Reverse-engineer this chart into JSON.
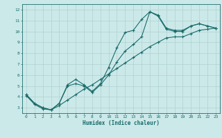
{
  "xlabel": "Humidex (Indice chaleur)",
  "background_color": "#cce9e9",
  "grid_color": "#b0d0d0",
  "line_color": "#1a6b6b",
  "x_values": [
    0,
    1,
    2,
    3,
    4,
    5,
    6,
    7,
    8,
    9,
    10,
    11,
    12,
    13,
    14,
    15,
    16,
    17,
    18,
    19,
    20,
    21,
    22,
    23
  ],
  "line1": [
    4.2,
    3.4,
    3.0,
    2.8,
    3.4,
    5.1,
    5.6,
    5.1,
    4.5,
    5.2,
    6.7,
    8.5,
    9.9,
    10.1,
    11.1,
    11.8,
    11.5,
    10.3,
    10.1,
    10.1,
    10.5,
    10.7,
    10.5,
    10.3
  ],
  "line2": [
    4.2,
    3.4,
    3.0,
    2.8,
    3.4,
    5.0,
    5.2,
    5.0,
    4.4,
    5.1,
    6.0,
    7.2,
    8.2,
    8.8,
    9.5,
    11.8,
    11.4,
    10.2,
    10.0,
    10.0,
    10.5,
    10.7,
    10.5,
    10.3
  ],
  "line3": [
    4.1,
    3.3,
    2.9,
    2.8,
    3.2,
    3.7,
    4.2,
    4.7,
    5.1,
    5.6,
    6.1,
    6.6,
    7.1,
    7.6,
    8.1,
    8.6,
    9.0,
    9.4,
    9.5,
    9.5,
    9.8,
    10.1,
    10.2,
    10.3
  ],
  "ylim": [
    2.5,
    12.5
  ],
  "xlim": [
    -0.5,
    23.5
  ],
  "yticks": [
    3,
    4,
    5,
    6,
    7,
    8,
    9,
    10,
    11,
    12
  ],
  "xticks": [
    0,
    1,
    2,
    3,
    4,
    5,
    6,
    7,
    8,
    9,
    10,
    11,
    12,
    13,
    14,
    15,
    16,
    17,
    18,
    19,
    20,
    21,
    22,
    23
  ]
}
